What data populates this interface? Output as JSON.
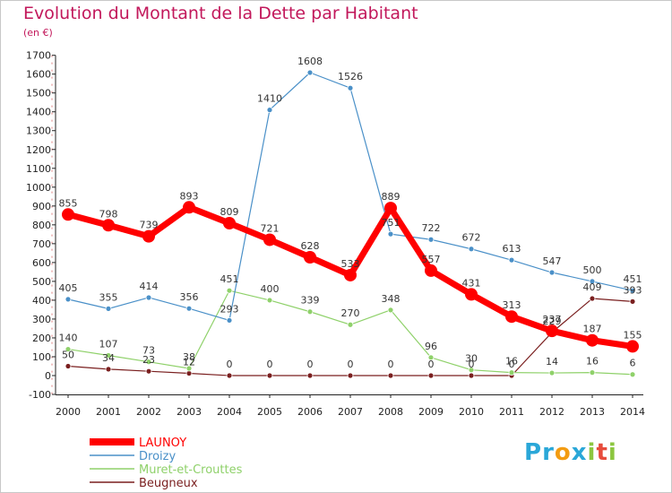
{
  "header": {
    "title": "Evolution du Montant de la Dette par Habitant",
    "subtitle": "(en €)"
  },
  "brand": {
    "logo_text": "Proxiti",
    "logo_letters": [
      {
        "ch": "P",
        "color": "#2aa7d8"
      },
      {
        "ch": "r",
        "color": "#2aa7d8"
      },
      {
        "ch": "o",
        "color": "#f39c12"
      },
      {
        "ch": "x",
        "color": "#2aa7d8"
      },
      {
        "ch": "i",
        "color": "#8cc63f"
      },
      {
        "ch": "t",
        "color": "#e74c3c"
      },
      {
        "ch": "i",
        "color": "#8cc63f"
      }
    ]
  },
  "chart_data": {
    "type": "line",
    "title": "Evolution du Montant de la Dette par Habitant",
    "subtitle": "(en €)",
    "xlabel": "",
    "ylabel": "",
    "x": [
      "2000",
      "2001",
      "2002",
      "2003",
      "2004",
      "2005",
      "2006",
      "2007",
      "2008",
      "2009",
      "2010",
      "2011",
      "2012",
      "2013",
      "2014"
    ],
    "ylim": [
      -100,
      1700
    ],
    "yticks": [
      "-100",
      "0",
      "100",
      "200",
      "300",
      "400",
      "500",
      "600",
      "700",
      "800",
      "900",
      "1000",
      "1100",
      "1200",
      "1300",
      "1400",
      "1500",
      "1600",
      "1700"
    ],
    "grid": false,
    "legend_position": "bottom-left",
    "series": [
      {
        "name": "LAUNOY",
        "color": "#ff0000",
        "values": [
          855,
          798,
          739,
          893,
          809,
          721,
          628,
          533,
          889,
          557,
          431,
          313,
          237,
          187,
          155
        ],
        "labels": [
          "855",
          "798",
          "739",
          "893",
          "809",
          "721",
          "628",
          "533",
          "889",
          "557",
          "431",
          "313",
          "237",
          "187",
          "155"
        ]
      },
      {
        "name": "Droizy",
        "color": "#4a90c8",
        "values": [
          405,
          355,
          414,
          356,
          293,
          1410,
          1608,
          1526,
          751,
          722,
          672,
          613,
          547,
          500,
          451
        ],
        "labels": [
          "405",
          "355",
          "414",
          "356",
          "293",
          "1410",
          "1608",
          "1526",
          "751",
          "722",
          "672",
          "613",
          "547",
          "500",
          "451"
        ]
      },
      {
        "name": "Muret-et-Crouttes",
        "color": "#8fd16a",
        "values": [
          140,
          107,
          73,
          38,
          451,
          400,
          339,
          270,
          348,
          96,
          30,
          16,
          14,
          16,
          6
        ],
        "labels": [
          "140",
          "107",
          "73",
          "38",
          "451",
          "400",
          "339",
          "270",
          "348",
          "96",
          "30",
          "16",
          "14",
          "16",
          "6"
        ]
      },
      {
        "name": "Beugneux",
        "color": "#7a1f1f",
        "values": [
          50,
          34,
          23,
          12,
          0,
          0,
          0,
          0,
          0,
          0,
          0,
          0,
          229,
          409,
          393
        ],
        "labels": [
          "50",
          "34",
          "23",
          "12",
          "0",
          "0",
          "0",
          "0",
          "0",
          "0",
          "0",
          "0",
          "229",
          "409",
          "393"
        ]
      }
    ]
  }
}
